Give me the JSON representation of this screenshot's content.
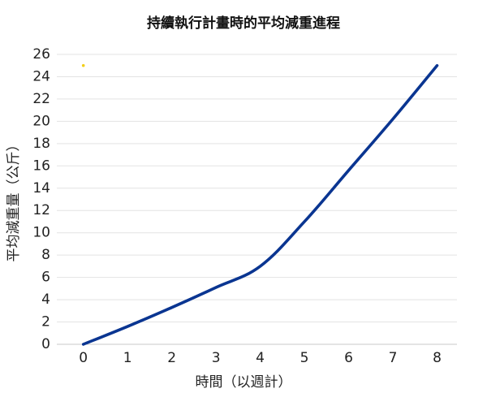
{
  "chart_data": {
    "type": "line",
    "title": "持續執行計畫時的平均減重進程",
    "xlabel": "時間（以週計）",
    "ylabel": "平均減重量（公斤）",
    "x": [
      0,
      1,
      2,
      3,
      4,
      5,
      6,
      7,
      8
    ],
    "series": [
      {
        "values": [
          0,
          1.6,
          3.3,
          5.1,
          7.0,
          11.0,
          15.6,
          20.2,
          25
        ],
        "color": "#0a3591"
      }
    ],
    "markers": [
      {
        "x": 0,
        "y": 25,
        "color": "#f2cf1a"
      }
    ],
    "xlim": [
      -0.6,
      8.45
    ],
    "ylim": [
      0,
      26
    ],
    "xticks": [
      0,
      1,
      2,
      3,
      4,
      5,
      6,
      7,
      8
    ],
    "yticks": [
      0,
      2,
      4,
      6,
      8,
      10,
      12,
      14,
      16,
      18,
      20,
      22,
      24,
      26
    ],
    "grid": "horizontal",
    "legend": "none"
  }
}
